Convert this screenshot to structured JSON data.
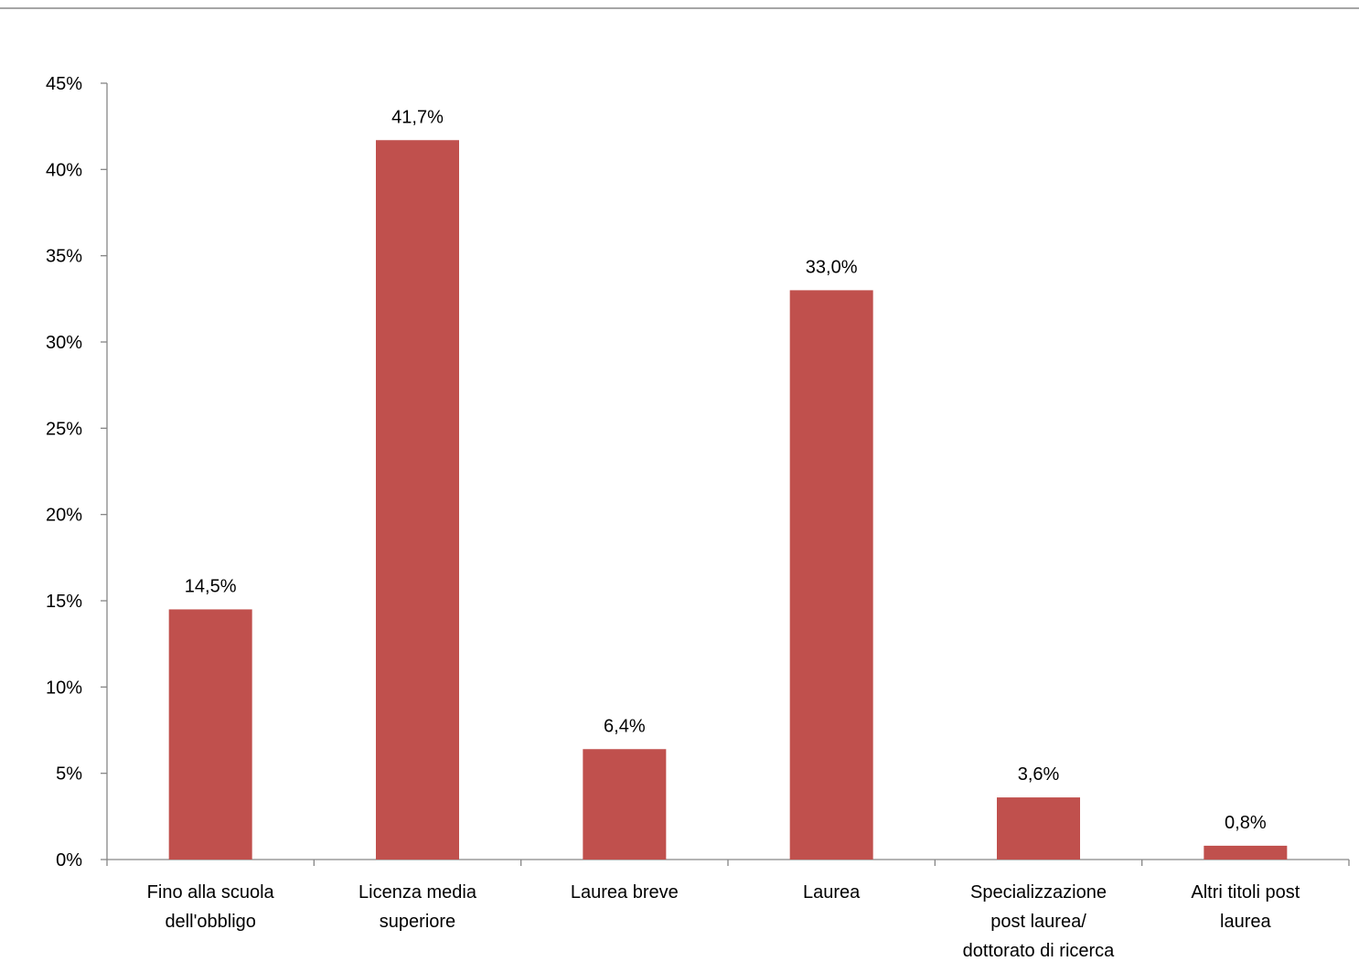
{
  "chart_data": {
    "type": "bar",
    "title": "",
    "xlabel": "",
    "ylabel": "",
    "categories": [
      [
        "Fino alla scuola",
        "dell'obbligo"
      ],
      [
        "Licenza media",
        "superiore"
      ],
      [
        "Laurea breve"
      ],
      [
        "Laurea"
      ],
      [
        "Specializzazione",
        "post laurea/",
        "dottorato di ricerca"
      ],
      [
        "Altri titoli post",
        "laurea"
      ]
    ],
    "values": [
      14.5,
      41.7,
      6.4,
      33.0,
      3.6,
      0.8
    ],
    "data_labels": [
      "14,5%",
      "41,7%",
      "6,4%",
      "33,0%",
      "3,6%",
      "0,8%"
    ],
    "ylim": [
      0,
      45
    ],
    "yticks": [
      0,
      5,
      10,
      15,
      20,
      25,
      30,
      35,
      40,
      45
    ],
    "ytick_labels": [
      "0%",
      "5%",
      "10%",
      "15%",
      "20%",
      "25%",
      "30%",
      "35%",
      "40%",
      "45%"
    ],
    "grid": false,
    "legend": "none",
    "colors": {
      "bar": "#C0504D",
      "axis": "#868686",
      "top_border": "#A6A6A6"
    }
  }
}
